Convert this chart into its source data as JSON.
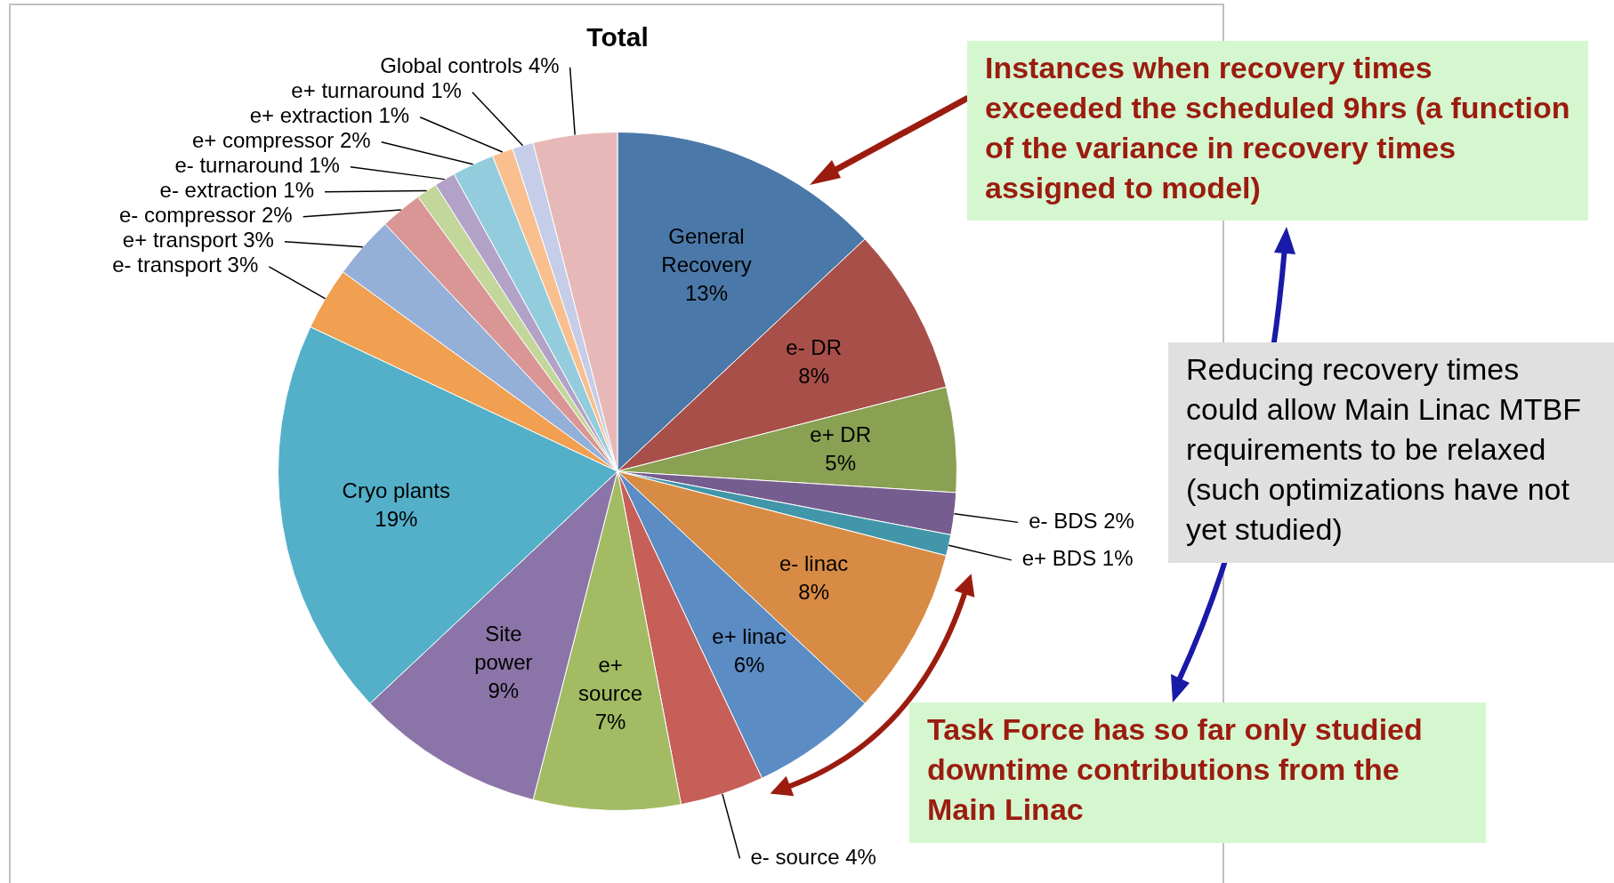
{
  "chart_data": {
    "type": "pie",
    "title": "Total",
    "categories": [
      "General Recovery",
      "e- DR",
      "e+ DR",
      "e- BDS",
      "e+ BDS",
      "e- linac",
      "e+ linac",
      "e- source",
      "e+ source",
      "Site power",
      "Cryo plants",
      "e- transport",
      "e+ transport",
      "e- compressor",
      "e- extraction",
      "e- turnaround",
      "e+ compressor",
      "e+ extraction",
      "e+ turnaround",
      "Global controls"
    ],
    "values": [
      13,
      8,
      5,
      2,
      1,
      8,
      6,
      4,
      7,
      9,
      19,
      3,
      3,
      2,
      1,
      1,
      2,
      1,
      1,
      4
    ],
    "value_labels": [
      "13%",
      "8%",
      "5%",
      "2%",
      "1%",
      "8%",
      "6%",
      "4%",
      "7%",
      "9%",
      "19%",
      "3%",
      "3%",
      "2%",
      "1%",
      "1%",
      "2%",
      "1%",
      "1%",
      "4%"
    ],
    "colors": [
      "#4a78a8",
      "#a84f4a",
      "#8aa052",
      "#765d8f",
      "#4296aa",
      "#d88b45",
      "#5b8cc4",
      "#c75f59",
      "#a3bb63",
      "#8b75a8",
      "#53b0c8",
      "#f0a050",
      "#95b0d8",
      "#d99694",
      "#c4d79b",
      "#b3a2c7",
      "#93cddd",
      "#fabf8f",
      "#c5cde8",
      "#e6b9b8"
    ],
    "legend": false,
    "annotations": [
      "Instances when recovery times exceeded the scheduled 9hrs (a function of the variance in recovery times assigned to model)",
      "Reducing recovery times could allow Main Linac MTBF requirements to be relaxed (such optimizations have not yet studied)",
      "Task Force has so far only studied downtime contributions from the Main Linac"
    ]
  }
}
